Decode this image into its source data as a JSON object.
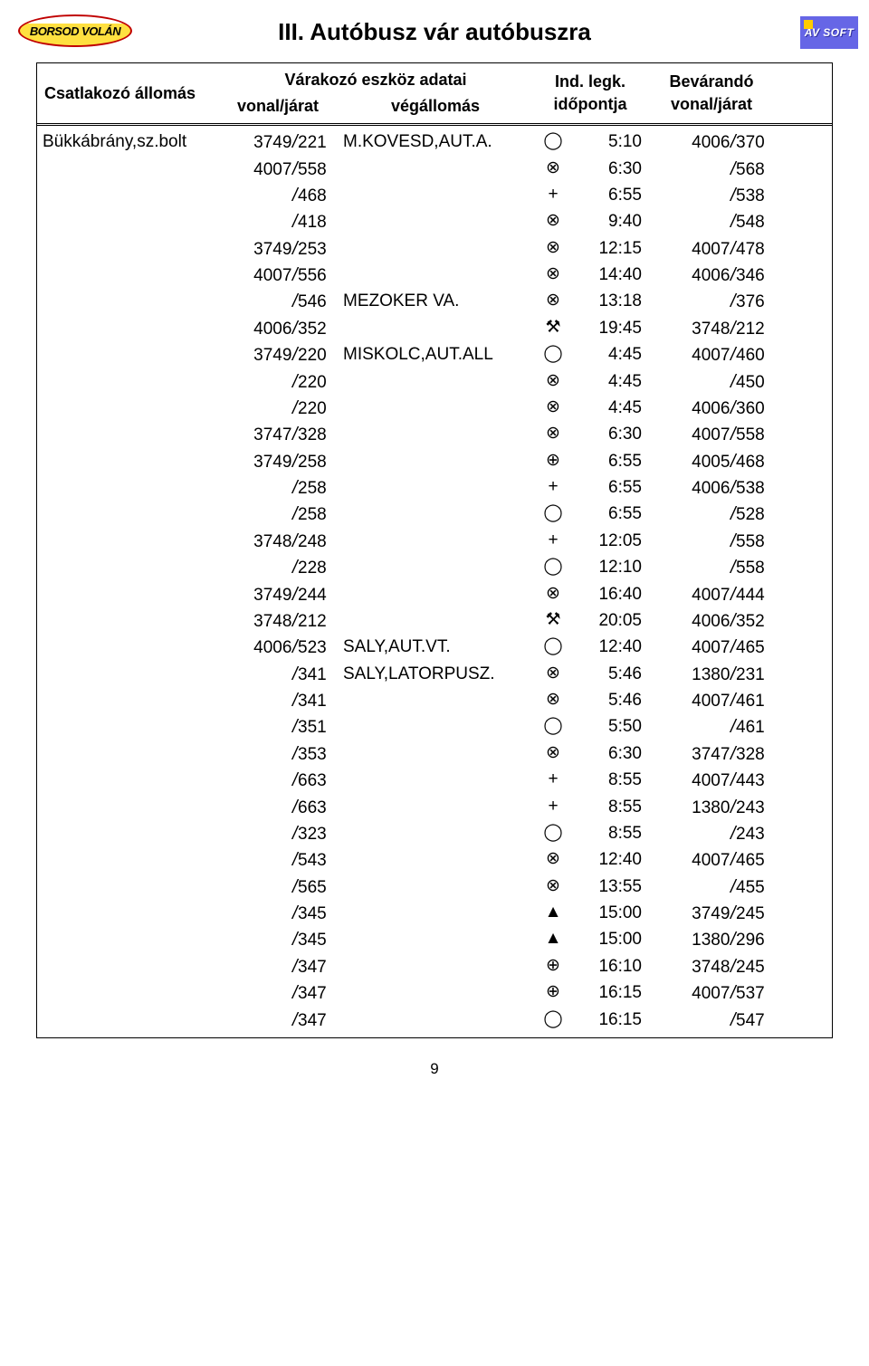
{
  "logo_left": "BORSOD VOLÁN",
  "logo_right": "AV SOFT",
  "title": "III. Autóbusz vár autóbuszra",
  "page_number": "9",
  "colors": {
    "logo_left_border": "#c00000",
    "logo_left_bg_top": "#ffffff",
    "logo_left_bg_bottom": "#ffe040",
    "logo_right_bg": "#6666e6",
    "logo_right_sun": "#ffcc00",
    "text": "#000000",
    "background": "#ffffff",
    "rule": "#000000"
  },
  "fonts": {
    "title_size_pt": 20,
    "header_size_pt": 14,
    "body_size_pt": 14
  },
  "header": {
    "station": "Csatlakozó állomás",
    "waiting_group": "Várakozó eszköz adatai",
    "line": "vonal/járat",
    "terminal": "végállomás",
    "ind_top": "Ind. legk.",
    "ind_bot": "időpontja",
    "wait_top": "Bevárandó",
    "wait_bot": "vonal/járat"
  },
  "station": "Bükkábrány,sz.bolt",
  "symbols": {
    "circle": "◯",
    "circlex": "⊗",
    "plus": "+",
    "hammers": "⚒",
    "circleplus": "⊕",
    "triangle": "▲"
  },
  "rows": [
    {
      "l1": "3749",
      "l2": "221",
      "term": "M.KOVESD,AUT.A.",
      "sym": "circle",
      "time": "5:10",
      "w1": "4006",
      "w2": "370"
    },
    {
      "l1": "4007",
      "l2": "558",
      "term": "",
      "sym": "circlex",
      "time": "6:30",
      "w1": "",
      "w2": "568"
    },
    {
      "l1": "",
      "l2": "468",
      "term": "",
      "sym": "plus",
      "time": "6:55",
      "w1": "",
      "w2": "538"
    },
    {
      "l1": "",
      "l2": "418",
      "term": "",
      "sym": "circlex",
      "time": "9:40",
      "w1": "",
      "w2": "548"
    },
    {
      "l1": "3749",
      "l2": "253",
      "term": "",
      "sym": "circlex",
      "time": "12:15",
      "w1": "4007",
      "w2": "478"
    },
    {
      "l1": "4007",
      "l2": "556",
      "term": "",
      "sym": "circlex",
      "time": "14:40",
      "w1": "4006",
      "w2": "346"
    },
    {
      "l1": "",
      "l2": "546",
      "term": "MEZOKER VA.",
      "sym": "circlex",
      "time": "13:18",
      "w1": "",
      "w2": "376"
    },
    {
      "l1": "4006",
      "l2": "352",
      "term": "",
      "sym": "hammers",
      "time": "19:45",
      "w1": "3748",
      "w2": "212"
    },
    {
      "l1": "3749",
      "l2": "220",
      "term": "MISKOLC,AUT.ALL",
      "sym": "circle",
      "time": "4:45",
      "w1": "4007",
      "w2": "460"
    },
    {
      "l1": "",
      "l2": "220",
      "term": "",
      "sym": "circlex",
      "time": "4:45",
      "w1": "",
      "w2": "450"
    },
    {
      "l1": "",
      "l2": "220",
      "term": "",
      "sym": "circlex",
      "time": "4:45",
      "w1": "4006",
      "w2": "360"
    },
    {
      "l1": "3747",
      "l2": "328",
      "term": "",
      "sym": "circlex",
      "time": "6:30",
      "w1": "4007",
      "w2": "558"
    },
    {
      "l1": "3749",
      "l2": "258",
      "term": "",
      "sym": "circleplus",
      "time": "6:55",
      "w1": "4005",
      "w2": "468"
    },
    {
      "l1": "",
      "l2": "258",
      "term": "",
      "sym": "plus",
      "time": "6:55",
      "w1": "4006",
      "w2": "538"
    },
    {
      "l1": "",
      "l2": "258",
      "term": "",
      "sym": "circle",
      "time": "6:55",
      "w1": "",
      "w2": "528"
    },
    {
      "l1": "3748",
      "l2": "248",
      "term": "",
      "sym": "plus",
      "time": "12:05",
      "w1": "",
      "w2": "558"
    },
    {
      "l1": "",
      "l2": "228",
      "term": "",
      "sym": "circle",
      "time": "12:10",
      "w1": "",
      "w2": "558"
    },
    {
      "l1": "3749",
      "l2": "244",
      "term": "",
      "sym": "circlex",
      "time": "16:40",
      "w1": "4007",
      "w2": "444"
    },
    {
      "l1": "3748",
      "l2": "212",
      "term": "",
      "sym": "hammers",
      "time": "20:05",
      "w1": "4006",
      "w2": "352"
    },
    {
      "l1": "4006",
      "l2": "523",
      "term": "SALY,AUT.VT.",
      "sym": "circle",
      "time": "12:40",
      "w1": "4007",
      "w2": "465"
    },
    {
      "l1": "",
      "l2": "341",
      "term": "SALY,LATORPUSZ.",
      "sym": "circlex",
      "time": "5:46",
      "w1": "1380",
      "w2": "231"
    },
    {
      "l1": "",
      "l2": "341",
      "term": "",
      "sym": "circlex",
      "time": "5:46",
      "w1": "4007",
      "w2": "461"
    },
    {
      "l1": "",
      "l2": "351",
      "term": "",
      "sym": "circle",
      "time": "5:50",
      "w1": "",
      "w2": "461"
    },
    {
      "l1": "",
      "l2": "353",
      "term": "",
      "sym": "circlex",
      "time": "6:30",
      "w1": "3747",
      "w2": "328"
    },
    {
      "l1": "",
      "l2": "663",
      "term": "",
      "sym": "plus",
      "time": "8:55",
      "w1": "4007",
      "w2": "443"
    },
    {
      "l1": "",
      "l2": "663",
      "term": "",
      "sym": "plus",
      "time": "8:55",
      "w1": "1380",
      "w2": "243"
    },
    {
      "l1": "",
      "l2": "323",
      "term": "",
      "sym": "circle",
      "time": "8:55",
      "w1": "",
      "w2": "243"
    },
    {
      "l1": "",
      "l2": "543",
      "term": "",
      "sym": "circlex",
      "time": "12:40",
      "w1": "4007",
      "w2": "465"
    },
    {
      "l1": "",
      "l2": "565",
      "term": "",
      "sym": "circlex",
      "time": "13:55",
      "w1": "",
      "w2": "455"
    },
    {
      "l1": "",
      "l2": "345",
      "term": "",
      "sym": "triangle",
      "time": "15:00",
      "w1": "3749",
      "w2": "245"
    },
    {
      "l1": "",
      "l2": "345",
      "term": "",
      "sym": "triangle",
      "time": "15:00",
      "w1": "1380",
      "w2": "296"
    },
    {
      "l1": "",
      "l2": "347",
      "term": "",
      "sym": "circleplus",
      "time": "16:10",
      "w1": "3748",
      "w2": "245"
    },
    {
      "l1": "",
      "l2": "347",
      "term": "",
      "sym": "circleplus",
      "time": "16:15",
      "w1": "4007",
      "w2": "537"
    },
    {
      "l1": "",
      "l2": "347",
      "term": "",
      "sym": "circle",
      "time": "16:15",
      "w1": "",
      "w2": "547"
    }
  ]
}
